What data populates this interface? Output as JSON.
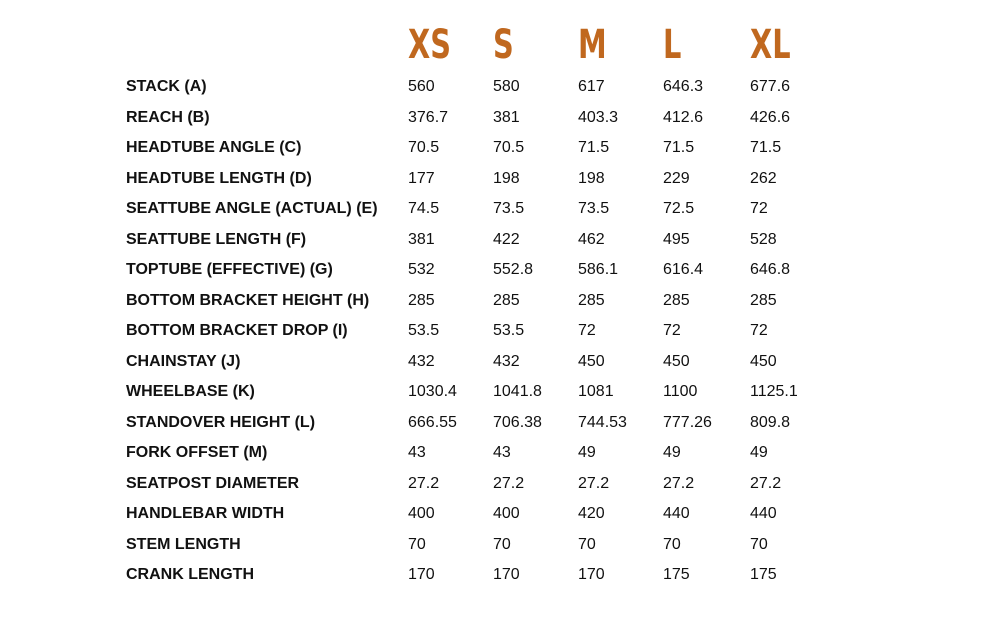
{
  "table": {
    "columns": [
      "XS",
      "S",
      "M",
      "L",
      "XL"
    ],
    "rows": [
      {
        "label": "STACK (A)",
        "values": [
          "560",
          "580",
          "617",
          "646.3",
          "677.6"
        ]
      },
      {
        "label": "REACH (B)",
        "values": [
          "376.7",
          "381",
          "403.3",
          "412.6",
          "426.6"
        ]
      },
      {
        "label": "HEADTUBE ANGLE (C)",
        "values": [
          "70.5",
          "70.5",
          "71.5",
          "71.5",
          "71.5"
        ]
      },
      {
        "label": "HEADTUBE LENGTH (D)",
        "values": [
          "177",
          "198",
          "198",
          "229",
          "262"
        ]
      },
      {
        "label": "SEATTUBE ANGLE (ACTUAL) (E)",
        "values": [
          "74.5",
          "73.5",
          "73.5",
          "72.5",
          "72"
        ]
      },
      {
        "label": "SEATTUBE LENGTH (F)",
        "values": [
          "381",
          "422",
          "462",
          "495",
          "528"
        ]
      },
      {
        "label": "TOPTUBE (EFFECTIVE) (G)",
        "values": [
          "532",
          "552.8",
          "586.1",
          "616.4",
          "646.8"
        ]
      },
      {
        "label": "BOTTOM BRACKET HEIGHT (H)",
        "values": [
          "285",
          "285",
          "285",
          "285",
          "285"
        ]
      },
      {
        "label": "BOTTOM BRACKET DROP (I)",
        "values": [
          "53.5",
          "53.5",
          "72",
          "72",
          "72"
        ]
      },
      {
        "label": "CHAINSTAY (J)",
        "values": [
          "432",
          "432",
          "450",
          "450",
          "450"
        ]
      },
      {
        "label": "WHEELBASE (K)",
        "values": [
          "1030.4",
          "1041.8",
          "1081",
          "1100",
          "1125.1"
        ]
      },
      {
        "label": "STANDOVER HEIGHT (L)",
        "values": [
          "666.55",
          "706.38",
          "744.53",
          "777.26",
          "809.8"
        ]
      },
      {
        "label": "FORK OFFSET (M)",
        "values": [
          "43",
          "43",
          "49",
          "49",
          "49"
        ]
      },
      {
        "label": "SEATPOST DIAMETER",
        "values": [
          "27.2",
          "27.2",
          "27.2",
          "27.2",
          "27.2"
        ]
      },
      {
        "label": "HANDLEBAR WIDTH",
        "values": [
          "400",
          "400",
          "420",
          "440",
          "440"
        ]
      },
      {
        "label": "STEM LENGTH",
        "values": [
          "70",
          "70",
          "70",
          "70",
          "70"
        ]
      },
      {
        "label": "CRANK LENGTH",
        "values": [
          "170",
          "170",
          "170",
          "175",
          "175"
        ]
      }
    ]
  }
}
